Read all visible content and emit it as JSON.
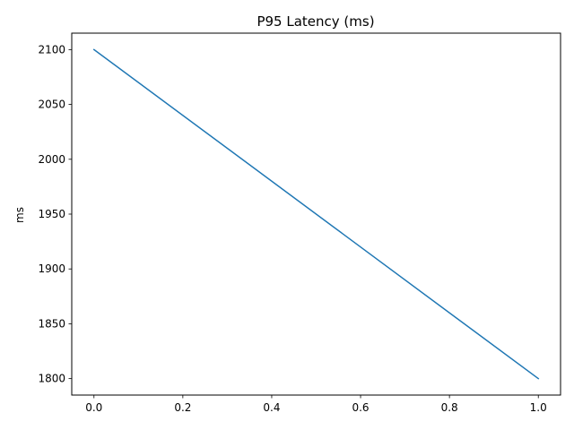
{
  "chart_data": {
    "type": "line",
    "title": "P95 Latency (ms)",
    "xlabel": "",
    "ylabel": "ms",
    "x": [
      0.0,
      1.0
    ],
    "series": [
      {
        "values": [
          2100,
          1800
        ],
        "color": "#1f77b4"
      }
    ],
    "xlim": [
      -0.05,
      1.05
    ],
    "ylim": [
      1785,
      2115
    ],
    "xticks": [
      0.0,
      0.2,
      0.4,
      0.6,
      0.8,
      1.0
    ],
    "xtick_labels": [
      "0.0",
      "0.2",
      "0.4",
      "0.6",
      "0.8",
      "1.0"
    ],
    "yticks": [
      1800,
      1850,
      1900,
      1950,
      2000,
      2050,
      2100
    ],
    "ytick_labels": [
      "1800",
      "1850",
      "1900",
      "1950",
      "2000",
      "2050",
      "2100"
    ],
    "grid": false,
    "legend": "none"
  }
}
